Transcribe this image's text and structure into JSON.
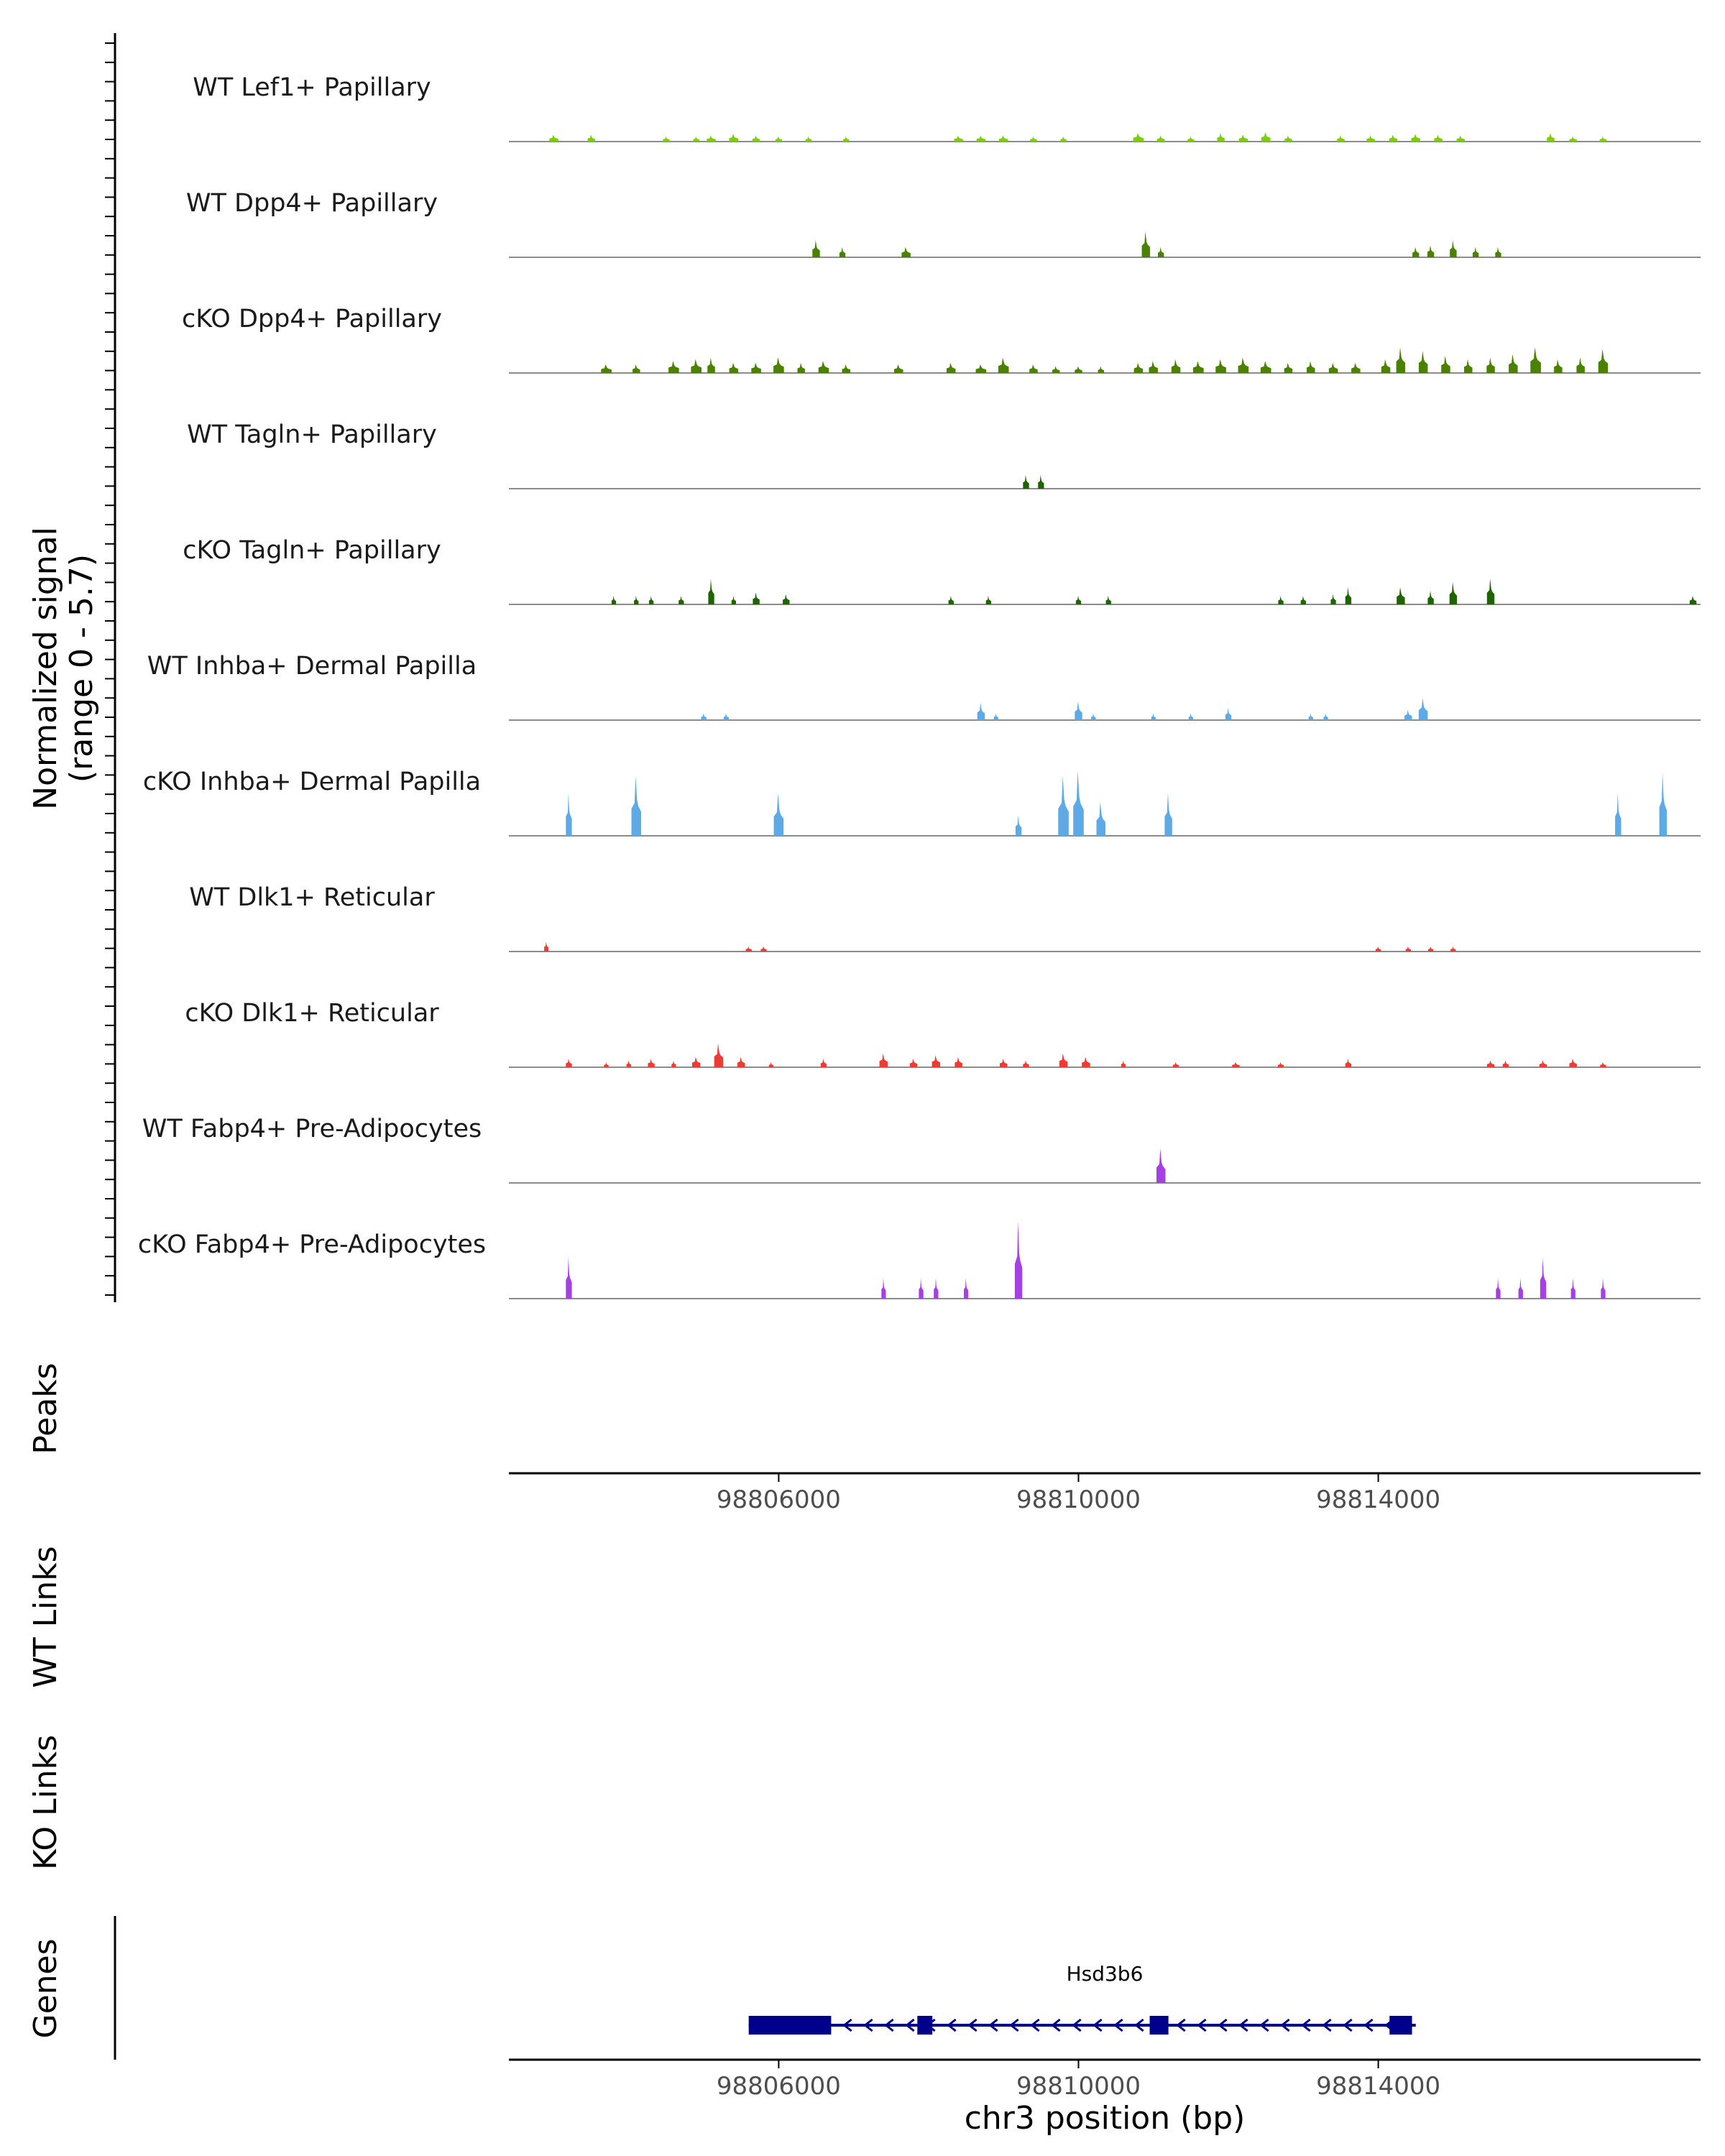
{
  "chart_data": {
    "type": "area",
    "title": "",
    "signal_axis_label": "Normalized signal",
    "signal_axis_range_label": "(range 0 - 5.7)",
    "ylim": [
      0,
      5.7
    ],
    "x_axis_label": "chr3 position (bp)",
    "xlim": [
      98802400,
      98818300
    ],
    "x_ticks": [
      98806000,
      98810000,
      98814000
    ],
    "x_tick_labels": [
      "98806000",
      "98810000",
      "98814000"
    ],
    "colors": {
      "lef1": "#7CCD0F",
      "dpp4": "#4A8200",
      "tagln": "#1F6400",
      "inhba": "#5EAAE6",
      "dlk1": "#EE3B33",
      "fabp4": "#A640E6",
      "gene": "#00008B"
    },
    "tracks": [
      {
        "name": "WT Lef1+ Papillary",
        "color_key": "lef1",
        "peaks": [
          [
            98803000,
            120,
            0.4
          ],
          [
            98803500,
            100,
            0.4
          ],
          [
            98804500,
            90,
            0.3
          ],
          [
            98804900,
            80,
            0.3
          ],
          [
            98805100,
            120,
            0.35
          ],
          [
            98805400,
            120,
            0.45
          ],
          [
            98805700,
            100,
            0.35
          ],
          [
            98806000,
            90,
            0.3
          ],
          [
            98806400,
            80,
            0.3
          ],
          [
            98806900,
            80,
            0.3
          ],
          [
            98808400,
            120,
            0.35
          ],
          [
            98808700,
            120,
            0.35
          ],
          [
            98809000,
            120,
            0.35
          ],
          [
            98809400,
            90,
            0.3
          ],
          [
            98809800,
            80,
            0.3
          ],
          [
            98810800,
            140,
            0.5
          ],
          [
            98811100,
            100,
            0.35
          ],
          [
            98811500,
            90,
            0.3
          ],
          [
            98811900,
            100,
            0.5
          ],
          [
            98812200,
            120,
            0.4
          ],
          [
            98812500,
            120,
            0.55
          ],
          [
            98812800,
            100,
            0.35
          ],
          [
            98813500,
            100,
            0.35
          ],
          [
            98813900,
            110,
            0.35
          ],
          [
            98814200,
            110,
            0.4
          ],
          [
            98814500,
            120,
            0.45
          ],
          [
            98814800,
            110,
            0.4
          ],
          [
            98815100,
            110,
            0.35
          ],
          [
            98816300,
            100,
            0.5
          ],
          [
            98816600,
            100,
            0.3
          ],
          [
            98817000,
            90,
            0.3
          ]
        ]
      },
      {
        "name": "WT Dpp4+ Papillary",
        "color_key": "dpp4",
        "peaks": [
          [
            98806500,
            100,
            1.0
          ],
          [
            98806850,
            80,
            0.6
          ],
          [
            98807700,
            120,
            0.6
          ],
          [
            98810900,
            110,
            1.5
          ],
          [
            98811100,
            80,
            0.6
          ],
          [
            98814500,
            90,
            0.6
          ],
          [
            98814700,
            90,
            0.7
          ],
          [
            98815000,
            90,
            1.0
          ],
          [
            98815300,
            80,
            0.6
          ],
          [
            98815600,
            80,
            0.6
          ]
        ]
      },
      {
        "name": "cKO Dpp4+ Papillary",
        "color_key": "dpp4",
        "peaks": [
          [
            98803700,
            140,
            0.5
          ],
          [
            98804100,
            100,
            0.5
          ],
          [
            98804600,
            140,
            0.7
          ],
          [
            98804900,
            140,
            0.8
          ],
          [
            98805100,
            100,
            0.9
          ],
          [
            98805400,
            120,
            0.6
          ],
          [
            98805700,
            130,
            0.6
          ],
          [
            98806000,
            140,
            0.9
          ],
          [
            98806300,
            100,
            0.6
          ],
          [
            98806600,
            140,
            0.7
          ],
          [
            98806900,
            110,
            0.5
          ],
          [
            98807600,
            120,
            0.5
          ],
          [
            98808300,
            120,
            0.6
          ],
          [
            98808700,
            140,
            0.5
          ],
          [
            98809000,
            140,
            0.9
          ],
          [
            98809400,
            110,
            0.5
          ],
          [
            98809700,
            100,
            0.4
          ],
          [
            98810000,
            100,
            0.4
          ],
          [
            98810300,
            80,
            0.4
          ],
          [
            98810800,
            120,
            0.6
          ],
          [
            98811000,
            120,
            0.7
          ],
          [
            98811300,
            120,
            0.8
          ],
          [
            98811600,
            140,
            0.7
          ],
          [
            98811900,
            140,
            0.8
          ],
          [
            98812200,
            140,
            0.9
          ],
          [
            98812500,
            140,
            0.7
          ],
          [
            98812800,
            110,
            0.6
          ],
          [
            98813100,
            110,
            0.7
          ],
          [
            98813400,
            120,
            0.6
          ],
          [
            98813700,
            120,
            0.6
          ],
          [
            98814100,
            120,
            0.8
          ],
          [
            98814300,
            120,
            1.5
          ],
          [
            98814600,
            120,
            1.3
          ],
          [
            98814900,
            120,
            1.0
          ],
          [
            98815200,
            110,
            0.8
          ],
          [
            98815500,
            110,
            0.9
          ],
          [
            98815800,
            120,
            1.1
          ],
          [
            98816100,
            140,
            1.5
          ],
          [
            98816400,
            110,
            0.8
          ],
          [
            98816700,
            110,
            0.9
          ],
          [
            98817000,
            130,
            1.4
          ]
        ]
      },
      {
        "name": "WT Tagln+ Papillary",
        "color_key": "tagln",
        "peaks": [
          [
            98809300,
            80,
            0.8
          ],
          [
            98809500,
            80,
            0.8
          ]
        ]
      },
      {
        "name": "cKO Tagln+ Papillary",
        "color_key": "tagln",
        "peaks": [
          [
            98803800,
            60,
            0.5
          ],
          [
            98804100,
            60,
            0.5
          ],
          [
            98804300,
            60,
            0.5
          ],
          [
            98804700,
            70,
            0.5
          ],
          [
            98805100,
            80,
            1.5
          ],
          [
            98805400,
            60,
            0.5
          ],
          [
            98805700,
            90,
            0.7
          ],
          [
            98806100,
            90,
            0.6
          ],
          [
            98808300,
            70,
            0.5
          ],
          [
            98808800,
            70,
            0.5
          ],
          [
            98810000,
            70,
            0.5
          ],
          [
            98810400,
            70,
            0.5
          ],
          [
            98812700,
            70,
            0.5
          ],
          [
            98813000,
            70,
            0.5
          ],
          [
            98813400,
            70,
            0.6
          ],
          [
            98813600,
            80,
            1.0
          ],
          [
            98814300,
            110,
            1.0
          ],
          [
            98814700,
            80,
            0.8
          ],
          [
            98815000,
            100,
            1.3
          ],
          [
            98815500,
            100,
            1.5
          ],
          [
            98818200,
            90,
            0.5
          ]
        ]
      },
      {
        "name": "WT Inhba+ Dermal Papilla",
        "color_key": "inhba",
        "peaks": [
          [
            98805000,
            70,
            0.4
          ],
          [
            98805300,
            70,
            0.4
          ],
          [
            98808700,
            100,
            1.0
          ],
          [
            98808900,
            60,
            0.4
          ],
          [
            98810000,
            100,
            1.1
          ],
          [
            98810200,
            60,
            0.4
          ],
          [
            98811000,
            60,
            0.4
          ],
          [
            98811500,
            60,
            0.4
          ],
          [
            98812000,
            80,
            0.7
          ],
          [
            98813100,
            60,
            0.4
          ],
          [
            98813300,
            60,
            0.4
          ],
          [
            98814400,
            100,
            0.6
          ],
          [
            98814600,
            120,
            1.3
          ]
        ]
      },
      {
        "name": "cKO Inhba+ Dermal Papilla",
        "color_key": "inhba",
        "peaks": [
          [
            98803200,
            80,
            2.5
          ],
          [
            98804100,
            130,
            3.5
          ],
          [
            98806000,
            130,
            2.5
          ],
          [
            98809200,
            80,
            1.2
          ],
          [
            98809800,
            140,
            3.5
          ],
          [
            98810000,
            140,
            3.8
          ],
          [
            98810300,
            120,
            2.0
          ],
          [
            98811200,
            100,
            2.5
          ],
          [
            98817200,
            80,
            2.5
          ],
          [
            98817800,
            100,
            3.7
          ]
        ]
      },
      {
        "name": "WT Dlk1+ Reticular",
        "color_key": "dlk1",
        "peaks": [
          [
            98802900,
            30,
            0.6
          ],
          [
            98805600,
            80,
            0.3
          ],
          [
            98805800,
            80,
            0.3
          ],
          [
            98814000,
            70,
            0.3
          ],
          [
            98814400,
            70,
            0.3
          ],
          [
            98814700,
            70,
            0.3
          ],
          [
            98815000,
            70,
            0.3
          ]
        ]
      },
      {
        "name": "cKO Dlk1+ Reticular",
        "color_key": "dlk1",
        "peaks": [
          [
            98803200,
            80,
            0.5
          ],
          [
            98803700,
            60,
            0.3
          ],
          [
            98804000,
            60,
            0.4
          ],
          [
            98804300,
            90,
            0.5
          ],
          [
            98804600,
            60,
            0.4
          ],
          [
            98804900,
            110,
            0.6
          ],
          [
            98805200,
            120,
            1.4
          ],
          [
            98805500,
            100,
            0.6
          ],
          [
            98805900,
            60,
            0.3
          ],
          [
            98806600,
            80,
            0.5
          ],
          [
            98807400,
            110,
            0.8
          ],
          [
            98807800,
            100,
            0.5
          ],
          [
            98808100,
            110,
            0.7
          ],
          [
            98808400,
            100,
            0.6
          ],
          [
            98809000,
            100,
            0.5
          ],
          [
            98809300,
            80,
            0.4
          ],
          [
            98809800,
            110,
            0.8
          ],
          [
            98810100,
            110,
            0.6
          ],
          [
            98810600,
            60,
            0.4
          ],
          [
            98811300,
            80,
            0.3
          ],
          [
            98812100,
            100,
            0.3
          ],
          [
            98812700,
            80,
            0.3
          ],
          [
            98813600,
            80,
            0.5
          ],
          [
            98815500,
            100,
            0.4
          ],
          [
            98815700,
            80,
            0.4
          ],
          [
            98816200,
            100,
            0.4
          ],
          [
            98816600,
            100,
            0.5
          ],
          [
            98817000,
            80,
            0.3
          ]
        ]
      },
      {
        "name": "WT Fabp4+ Pre-Adipocytes",
        "color_key": "fabp4",
        "peaks": [
          [
            98811100,
            120,
            2.0
          ]
        ]
      },
      {
        "name": "cKO Fabp4+ Pre-Adipocytes",
        "color_key": "fabp4",
        "peaks": [
          [
            98803200,
            80,
            2.4
          ],
          [
            98807400,
            60,
            1.2
          ],
          [
            98807900,
            60,
            1.2
          ],
          [
            98808100,
            60,
            1.2
          ],
          [
            98808500,
            60,
            1.2
          ],
          [
            98809200,
            100,
            4.5
          ],
          [
            98815600,
            60,
            1.2
          ],
          [
            98815900,
            60,
            1.2
          ],
          [
            98816200,
            80,
            2.4
          ],
          [
            98816600,
            60,
            1.2
          ],
          [
            98817000,
            60,
            1.2
          ]
        ]
      }
    ],
    "section_labels": {
      "peaks": "Peaks",
      "wt_links": "WT Links",
      "ko_links": "KO Links",
      "genes": "Genes"
    },
    "gene": {
      "name": "Hsd3b6",
      "start": 98805600,
      "end": 98814500,
      "strand": "-",
      "exons": [
        [
          98805600,
          98806700
        ],
        [
          98807850,
          98808050
        ],
        [
          98810950,
          98811200
        ],
        [
          98814150,
          98814450
        ]
      ]
    }
  }
}
